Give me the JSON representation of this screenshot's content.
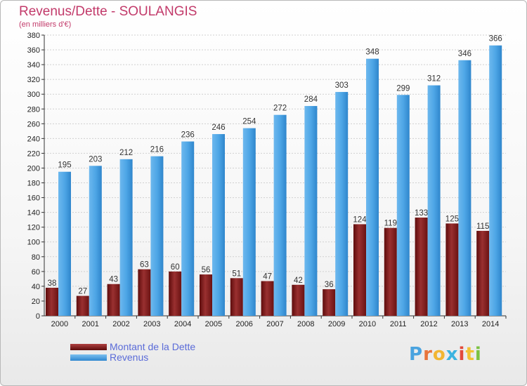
{
  "title": "Revenus/Dette - SOULANGIS",
  "subtitle": "(en milliers d'€)",
  "logo": {
    "letters": [
      "P",
      "r",
      "o",
      "x",
      "i",
      "t",
      "i"
    ],
    "colors": [
      "#4aa3df",
      "#e8743b",
      "#f2b632",
      "#3bb3e0",
      "#e24a3b",
      "#f2c232",
      "#7cc242"
    ]
  },
  "colors": {
    "dette": "#7a1c1c",
    "revenus": "#4ea6e6"
  },
  "chart_data": {
    "type": "bar",
    "title": "Revenus/Dette - SOULANGIS",
    "subtitle": "(en milliers d'€)",
    "categories": [
      "2000",
      "2001",
      "2002",
      "2003",
      "2004",
      "2005",
      "2006",
      "2007",
      "2008",
      "2009",
      "2010",
      "2011",
      "2012",
      "2013",
      "2014"
    ],
    "series": [
      {
        "name": "Montant de la Dette",
        "values": [
          38,
          27,
          43,
          63,
          60,
          56,
          51,
          47,
          42,
          36,
          124,
          119,
          133,
          125,
          115
        ]
      },
      {
        "name": "Revenus",
        "values": [
          195,
          203,
          212,
          216,
          236,
          246,
          254,
          272,
          284,
          303,
          348,
          299,
          312,
          346,
          366
        ]
      }
    ],
    "ylim": [
      0,
      380
    ],
    "yticks": [
      0,
      20,
      40,
      60,
      80,
      100,
      120,
      140,
      160,
      180,
      200,
      220,
      240,
      260,
      280,
      300,
      320,
      340,
      360,
      380
    ],
    "grid": true,
    "legend": "bottom-left"
  }
}
